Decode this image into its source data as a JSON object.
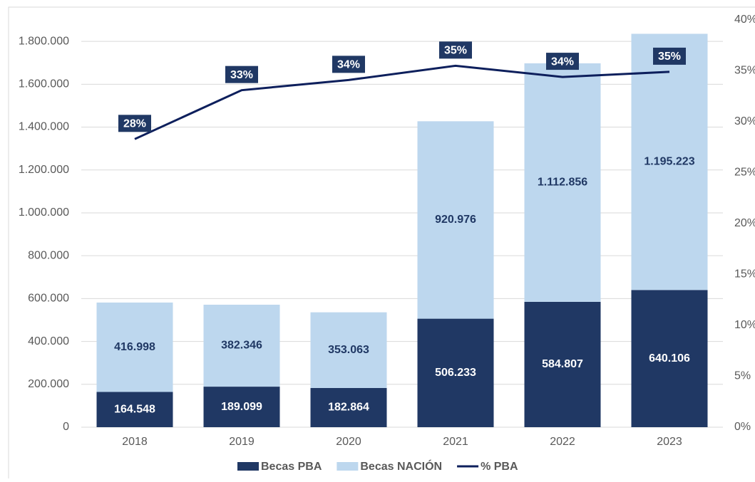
{
  "chart_data": {
    "type": "bar",
    "stacked": true,
    "categories": [
      "2018",
      "2019",
      "2020",
      "2021",
      "2022",
      "2023"
    ],
    "series": [
      {
        "name": "Becas PBA",
        "color": "#203864",
        "values": [
          164548,
          189099,
          182864,
          506233,
          584807,
          640106
        ],
        "value_labels": [
          "164.548",
          "189.099",
          "182.864",
          "506.233",
          "584.807",
          "640.106"
        ]
      },
      {
        "name": "Becas NACIÓN",
        "color": "#bdd7ee",
        "values": [
          416998,
          382346,
          353063,
          920976,
          1112856,
          1195223
        ],
        "value_labels": [
          "416.998",
          "382.346",
          "353.063",
          "920.976",
          "1.112.856",
          "1.195.223"
        ]
      },
      {
        "name": "% PBA",
        "type": "line",
        "axis": "y2",
        "color": "#0d1f5c",
        "values": [
          28.3,
          33.1,
          34.1,
          35.5,
          34.4,
          34.9
        ],
        "value_labels": [
          "28%",
          "33%",
          "34%",
          "35%",
          "34%",
          "35%"
        ]
      }
    ],
    "ylim": [
      0,
      1900000
    ],
    "yticks": [
      0,
      {
        "value": 200000,
        "label": "200.000"
      },
      {
        "value": 400000,
        "label": "400.000"
      },
      {
        "value": 600000,
        "label": "600.000"
      },
      {
        "value": 800000,
        "label": "800.000"
      },
      {
        "value": 1000000,
        "label": "1.000.000"
      },
      {
        "value": 1200000,
        "label": "1.200.000"
      },
      {
        "value": 1400000,
        "label": "1.400.000"
      },
      {
        "value": 1600000,
        "label": "1.600.000"
      },
      {
        "value": 1800000,
        "label": "1.800.000"
      }
    ],
    "y2lim": [
      0,
      40
    ],
    "y2ticks": [
      {
        "value": 0,
        "label": "0%"
      },
      {
        "value": 5,
        "label": "5%"
      },
      {
        "value": 10,
        "label": "10%"
      },
      {
        "value": 15,
        "label": "15%"
      },
      {
        "value": 20,
        "label": "20%"
      },
      {
        "value": 25,
        "label": "25%"
      },
      {
        "value": 30,
        "label": "30%"
      },
      {
        "value": 35,
        "label": "35%"
      },
      {
        "value": 40,
        "label": "40%"
      }
    ],
    "grid": true,
    "legend": "bottom"
  }
}
